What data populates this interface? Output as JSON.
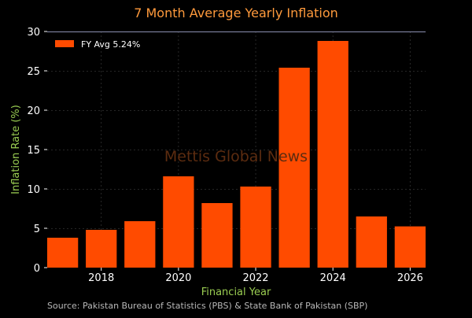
{
  "colors": {
    "background": "#000000",
    "bar": "#ff4b00",
    "title": "#ff9a3c",
    "axis_label": "#9acd52",
    "tick": "#ffffff",
    "source": "#b8b8b8",
    "watermark": "#5c2c10",
    "legend_text": "#ffffff",
    "grid": "#333333",
    "top_line": "#8a8fb0"
  },
  "chart_data": {
    "type": "bar",
    "title": "7 Month Average Yearly Inflation",
    "xlabel": "Financial Year",
    "ylabel": "Inflation Rate (%)",
    "x": [
      2017,
      2018,
      2019,
      2020,
      2021,
      2022,
      2023,
      2024,
      2025,
      2026
    ],
    "values": [
      3.8,
      4.8,
      5.9,
      11.6,
      8.2,
      10.3,
      25.4,
      28.8,
      6.5,
      5.24
    ],
    "xlim": [
      2016.6,
      2026.4
    ],
    "ylim": [
      0,
      30
    ],
    "xticks": [
      2018,
      2020,
      2022,
      2024,
      2026
    ],
    "yticks": [
      0,
      5,
      10,
      15,
      20,
      25,
      30
    ],
    "grid": true,
    "legend": {
      "label": "FY Avg 5.24%",
      "position": "top-left"
    },
    "watermark": "Mettis Global News",
    "source": "Source: Pakistan Bureau of Statistics (PBS) & State Bank of Pakistan (SBP)"
  }
}
